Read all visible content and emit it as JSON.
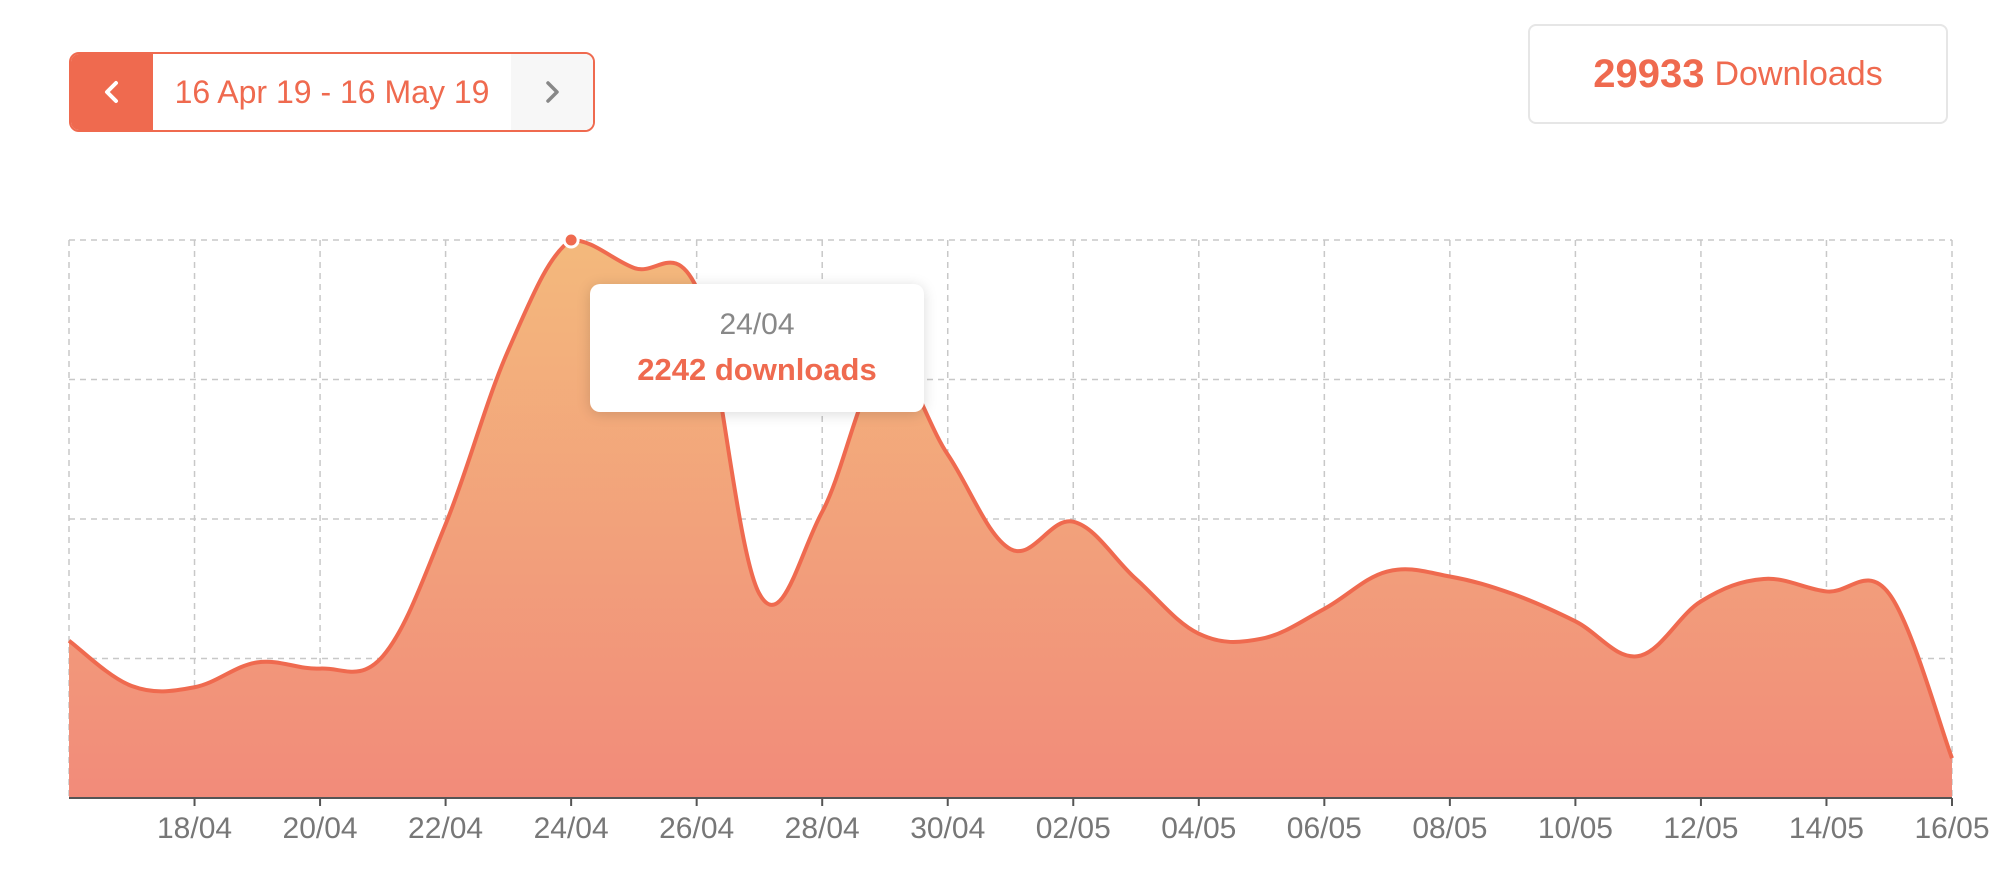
{
  "date_range": {
    "label": "16 Apr 19 - 16 May 19"
  },
  "total": {
    "value": "29933",
    "label": "Downloads"
  },
  "tooltip": {
    "date": "24/04",
    "value_text": "2242 downloads"
  },
  "colors": {
    "accent": "#ef6a4f",
    "fill_top": "#f3b97c",
    "fill_bottom": "#f28b7a",
    "grid": "#c8c8c8"
  },
  "chart_data": {
    "type": "area",
    "title": "",
    "xlabel": "",
    "ylabel": "",
    "ylim": [
      0,
      2242
    ],
    "grid": true,
    "x": [
      "16/04",
      "17/04",
      "18/04",
      "19/04",
      "20/04",
      "21/04",
      "22/04",
      "23/04",
      "24/04",
      "25/04",
      "26/04",
      "27/04",
      "28/04",
      "29/04",
      "30/04",
      "01/05",
      "02/05",
      "03/05",
      "04/05",
      "05/05",
      "06/05",
      "07/05",
      "08/05",
      "09/05",
      "10/05",
      "11/05",
      "12/05",
      "13/05",
      "14/05",
      "15/05",
      "16/05"
    ],
    "tick_labels": [
      "18/04",
      "20/04",
      "22/04",
      "24/04",
      "26/04",
      "28/04",
      "30/04",
      "02/05",
      "04/05",
      "06/05",
      "08/05",
      "10/05",
      "12/05",
      "14/05",
      "16/05"
    ],
    "series": [
      {
        "values": [
          632,
          450,
          445,
          545,
          520,
          570,
          1100,
          1800,
          2242,
          2130,
          2050,
          820,
          1150,
          1750,
          1380,
          1000,
          1110,
          880,
          660,
          640,
          760,
          910,
          890,
          820,
          710,
          570,
          790,
          880,
          830,
          820,
          160
        ]
      }
    ],
    "highlight": {
      "x": "24/04",
      "value": 2242
    }
  }
}
